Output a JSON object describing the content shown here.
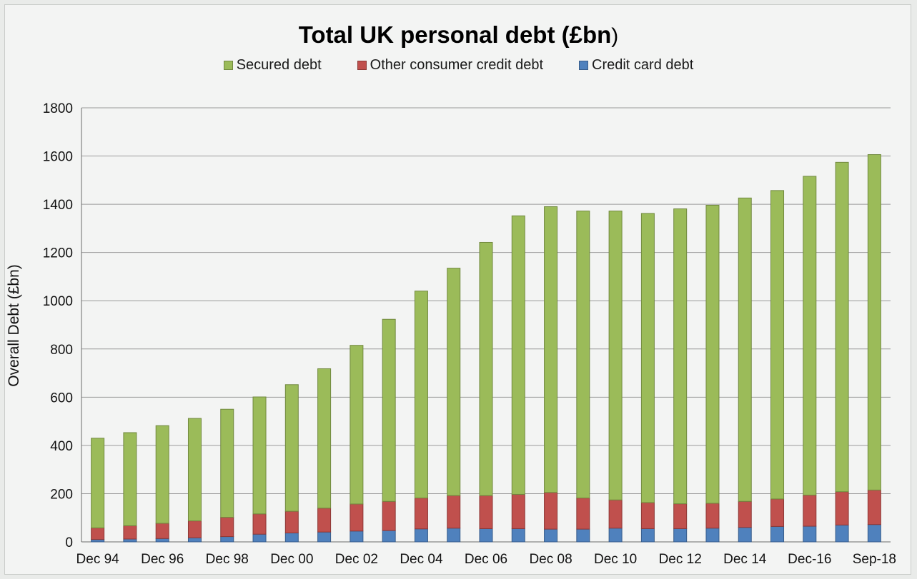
{
  "chart_data": {
    "type": "bar",
    "stacked": true,
    "title": "Total UK personal debt (£bn",
    "title_suffix": ")",
    "ylabel": "Overall Debt (£bn)",
    "xlabel": "",
    "ylim": [
      0,
      1800
    ],
    "yticks": [
      0,
      200,
      400,
      600,
      800,
      1000,
      1200,
      1400,
      1600,
      1800
    ],
    "grid": true,
    "legend_position": "top",
    "x_tick_labels": [
      "Dec 94",
      "Dec 96",
      "Dec 98",
      "Dec 00",
      "Dec 02",
      "Dec 04",
      "Dec 06",
      "Dec 08",
      "Dec 10",
      "Dec 12",
      "Dec 14",
      "Dec-16",
      "Sep-18"
    ],
    "legend_order": [
      "Secured debt",
      "Other consumer credit debt",
      "Credit card debt"
    ],
    "num_bars": 25,
    "series": [
      {
        "name": "Credit card debt",
        "color": "#4f81bd",
        "values": [
          10,
          12,
          14,
          17,
          22,
          32,
          37,
          41,
          45,
          47,
          54,
          57,
          55,
          55,
          53,
          53,
          57,
          55,
          55,
          57,
          60,
          64,
          65,
          70,
          72
        ]
      },
      {
        "name": "Other consumer credit debt",
        "color": "#c0504d",
        "values": [
          48,
          55,
          63,
          70,
          80,
          84,
          90,
          99,
          112,
          121,
          128,
          135,
          137,
          142,
          152,
          129,
          117,
          108,
          103,
          103,
          108,
          114,
          129,
          138,
          143
        ]
      },
      {
        "name": "Secured debt",
        "color": "#9bbb59",
        "values": [
          372,
          386,
          405,
          425,
          448,
          485,
          525,
          578,
          658,
          755,
          858,
          943,
          1050,
          1155,
          1185,
          1190,
          1198,
          1199,
          1223,
          1236,
          1258,
          1279,
          1322,
          1366,
          1391
        ]
      }
    ]
  }
}
